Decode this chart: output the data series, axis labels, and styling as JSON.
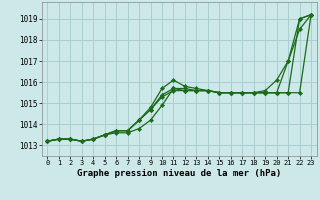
{
  "background_color": "#cce8e8",
  "grid_color": "#aacece",
  "line_color": "#1a6b1a",
  "title": "Graphe pression niveau de la mer (hPa)",
  "xlim": [
    -0.5,
    23.5
  ],
  "ylim": [
    1012.5,
    1019.8
  ],
  "yticks": [
    1013,
    1014,
    1015,
    1016,
    1017,
    1018,
    1019
  ],
  "xticks": [
    0,
    1,
    2,
    3,
    4,
    5,
    6,
    7,
    8,
    9,
    10,
    11,
    12,
    13,
    14,
    15,
    16,
    17,
    18,
    19,
    20,
    21,
    22,
    23
  ],
  "series": [
    [
      1013.2,
      1013.3,
      1013.3,
      1013.2,
      1013.3,
      1013.5,
      1013.6,
      1013.6,
      1013.8,
      1014.2,
      1014.9,
      1015.7,
      1015.6,
      1015.6,
      1015.6,
      1015.5,
      1015.5,
      1015.5,
      1015.5,
      1015.5,
      1015.5,
      1015.5,
      1015.5,
      1019.2
    ],
    [
      1013.2,
      1013.3,
      1013.3,
      1013.2,
      1013.3,
      1013.5,
      1013.7,
      1013.7,
      1014.2,
      1014.8,
      1015.7,
      1016.1,
      1015.8,
      1015.7,
      1015.6,
      1015.5,
      1015.5,
      1015.5,
      1015.5,
      1015.5,
      1015.5,
      1015.5,
      1019.0,
      1019.2
    ],
    [
      1013.2,
      1013.3,
      1013.3,
      1013.2,
      1013.3,
      1013.5,
      1013.7,
      1013.7,
      1014.2,
      1014.7,
      1015.4,
      1015.7,
      1015.7,
      1015.6,
      1015.6,
      1015.5,
      1015.5,
      1015.5,
      1015.5,
      1015.6,
      1016.1,
      1017.0,
      1019.0,
      1019.2
    ],
    [
      1013.2,
      1013.3,
      1013.3,
      1013.2,
      1013.3,
      1013.5,
      1013.7,
      1013.7,
      1014.2,
      1014.7,
      1015.3,
      1015.6,
      1015.6,
      1015.6,
      1015.6,
      1015.5,
      1015.5,
      1015.5,
      1015.5,
      1015.5,
      1015.5,
      1017.0,
      1018.5,
      1019.2
    ]
  ]
}
